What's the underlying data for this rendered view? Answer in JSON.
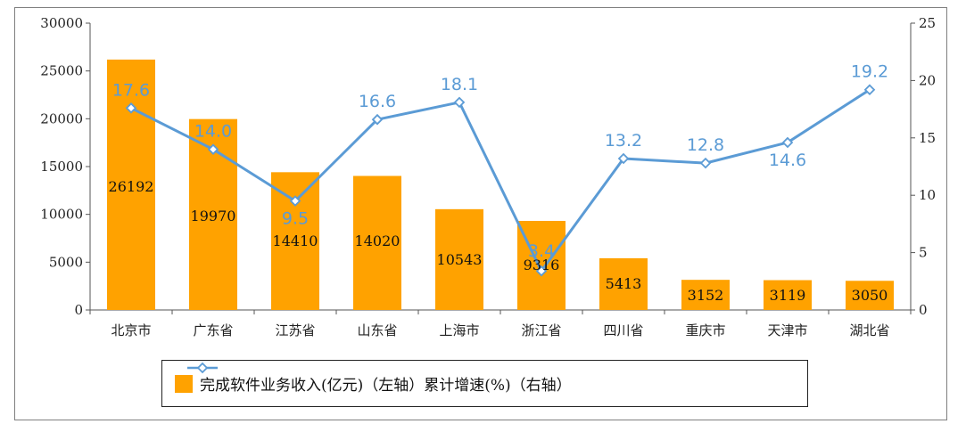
{
  "chart_data": {
    "type": "bar",
    "categories": [
      "北京市",
      "广东省",
      "江苏省",
      "山东省",
      "上海市",
      "浙江省",
      "四川省",
      "重庆市",
      "天津市",
      "湖北省"
    ],
    "series": [
      {
        "name": "完成软件业务收入(亿元)（左轴）",
        "type": "bar",
        "axis": "left",
        "color": "#ffa200",
        "values": [
          26192,
          19970,
          14410,
          14020,
          10543,
          9316,
          5413,
          3152,
          3119,
          3050
        ],
        "labels": [
          "26192",
          "19970",
          "14410",
          "14020",
          "10543",
          "9316",
          "5413",
          "3152",
          "3119",
          "3050"
        ]
      },
      {
        "name": "累计增速(%)（右轴）",
        "type": "line",
        "axis": "right",
        "color": "#5b9bd5",
        "marker": "diamond",
        "values": [
          17.6,
          14.0,
          9.5,
          16.6,
          18.1,
          3.4,
          13.2,
          12.8,
          14.6,
          19.2
        ],
        "labels": [
          "17.6",
          "14.0",
          "9.5",
          "16.6",
          "18.1",
          "3.4",
          "13.2",
          "12.8",
          "14.6",
          "19.2"
        ]
      }
    ],
    "y_left": {
      "min": 0,
      "max": 30000,
      "ticks": [
        "0",
        "5000",
        "10000",
        "15000",
        "20000",
        "25000",
        "30000"
      ]
    },
    "y_right": {
      "min": 0,
      "max": 25,
      "ticks": [
        "0",
        "5",
        "10",
        "15",
        "20",
        "25"
      ]
    },
    "grid": false,
    "legend_position": "bottom"
  }
}
